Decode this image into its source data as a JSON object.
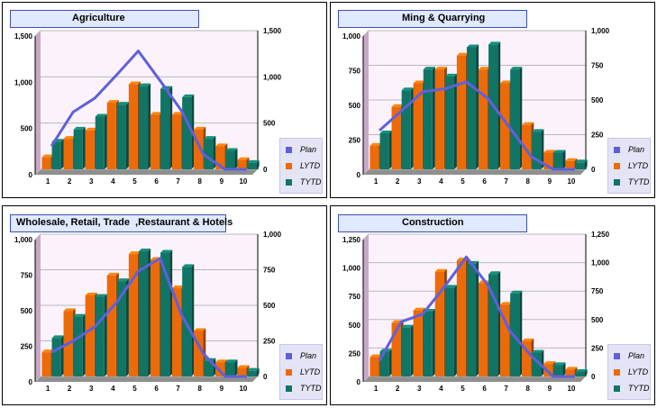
{
  "colors": {
    "plan": "#6060dd",
    "lytd": "#ec6a08",
    "tytd": "#107565",
    "plot_bg": "#fbf2fb",
    "wall": "#c7a9c7",
    "grid": "#b9b9b9",
    "title_bg": "#dfe9ff",
    "legend_bg": "#e4e4f7"
  },
  "legend": [
    "Plan",
    "LYTD",
    "TYTD"
  ],
  "chart_data": [
    {
      "type": "bar",
      "title": "Agriculture",
      "categories": [
        "1",
        "2",
        "3",
        "4",
        "5",
        "6",
        "7",
        "8",
        "9",
        "10"
      ],
      "ylim": [
        0,
        1500
      ],
      "left_ticks": [
        "0",
        "500",
        "1,000",
        "1,500"
      ],
      "right_ticks": [
        "0",
        "500",
        "1,000",
        "1,500"
      ],
      "series": [
        {
          "name": "Plan",
          "type": "line",
          "values": [
            250,
            620,
            770,
            1020,
            1280,
            960,
            630,
            160,
            0,
            0
          ]
        },
        {
          "name": "LYTD",
          "type": "bar",
          "values": [
            130,
            330,
            420,
            720,
            920,
            590,
            590,
            430,
            250,
            100
          ]
        },
        {
          "name": "TYTD",
          "type": "bar",
          "values": [
            300,
            430,
            570,
            700,
            900,
            870,
            780,
            330,
            200,
            70
          ]
        }
      ]
    },
    {
      "type": "bar",
      "title": "Ming & Quarrying",
      "categories": [
        "1",
        "2",
        "3",
        "4",
        "5",
        "6",
        "7",
        "8",
        "9",
        "10"
      ],
      "ylim": [
        0,
        1000
      ],
      "left_ticks": [
        "0",
        "250",
        "500",
        "750",
        "1,000"
      ],
      "right_ticks": [
        "0",
        "250",
        "500",
        "750",
        "1,000"
      ],
      "series": [
        {
          "name": "Plan",
          "type": "line",
          "values": [
            280,
            420,
            560,
            580,
            630,
            510,
            300,
            90,
            0,
            0
          ]
        },
        {
          "name": "LYTD",
          "type": "bar",
          "values": [
            170,
            450,
            620,
            720,
            820,
            720,
            620,
            320,
            120,
            60
          ]
        },
        {
          "name": "TYTD",
          "type": "bar",
          "values": [
            260,
            570,
            720,
            670,
            880,
            900,
            720,
            270,
            120,
            50
          ]
        }
      ]
    },
    {
      "type": "bar",
      "title": "Wholesale, Retail, Trade  ,Restaurant & Hotels",
      "categories": [
        "1",
        "2",
        "3",
        "4",
        "5",
        "6",
        "7",
        "8",
        "9",
        "10"
      ],
      "ylim": [
        0,
        1000
      ],
      "left_ticks": [
        "0",
        "250",
        "500",
        "750",
        "1,000"
      ],
      "right_ticks": [
        "0",
        "250",
        "500",
        "750",
        "1,000"
      ],
      "series": [
        {
          "name": "Plan",
          "type": "line",
          "values": [
            170,
            250,
            350,
            520,
            740,
            830,
            430,
            160,
            0,
            0
          ]
        },
        {
          "name": "LYTD",
          "type": "bar",
          "values": [
            170,
            460,
            570,
            710,
            860,
            820,
            620,
            320,
            100,
            60
          ]
        },
        {
          "name": "TYTD",
          "type": "bar",
          "values": [
            270,
            420,
            560,
            670,
            880,
            870,
            770,
            110,
            100,
            40
          ]
        }
      ]
    },
    {
      "type": "bar",
      "title": "Construction",
      "categories": [
        "1",
        "2",
        "3",
        "4",
        "5",
        "6",
        "7",
        "8",
        "9",
        "10"
      ],
      "ylim": [
        0,
        1250
      ],
      "left_ticks": [
        "0",
        "250",
        "500",
        "750",
        "1,000",
        "1,250"
      ],
      "right_ticks": [
        "0",
        "250",
        "500",
        "750",
        "1,000",
        "1,250"
      ],
      "series": [
        {
          "name": "Plan",
          "type": "line",
          "values": [
            140,
            480,
            550,
            790,
            1050,
            800,
            400,
            180,
            0,
            0
          ]
        },
        {
          "name": "LYTD",
          "type": "bar",
          "values": [
            170,
            470,
            580,
            920,
            1020,
            820,
            630,
            310,
            110,
            60
          ]
        },
        {
          "name": "TYTD",
          "type": "bar",
          "values": [
            220,
            430,
            570,
            780,
            990,
            900,
            730,
            210,
            100,
            40
          ]
        }
      ]
    }
  ]
}
